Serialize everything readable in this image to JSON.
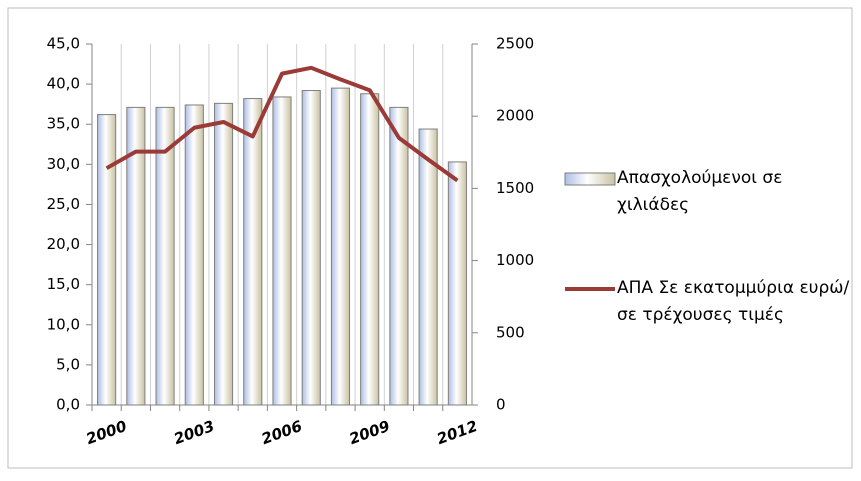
{
  "chart_data": {
    "type": "bar",
    "categories": [
      "2000",
      null,
      null,
      "2003",
      null,
      null,
      "2006",
      null,
      null,
      "2009",
      null,
      null,
      "2012"
    ],
    "series": [
      {
        "name": "Απασχολούμενοι σε χιλιάδες",
        "type": "bar",
        "color": "#c9c2a2",
        "values": [
          36.2,
          37.1,
          37.1,
          37.4,
          37.6,
          38.2,
          38.4,
          39.2,
          39.5,
          38.8,
          37.1,
          34.4,
          30.3
        ]
      },
      {
        "name": "ΑΠΑ Σε εκατομμύρια ευρώ/ σε τρέχουσες τιμές",
        "type": "line",
        "axis": "y2",
        "color": "#9b3b38",
        "values": [
          1640,
          1755,
          1755,
          1920,
          1960,
          1860,
          2295,
          2335,
          2255,
          2180,
          1850,
          1700,
          1555
        ]
      }
    ],
    "ylim": [
      0,
      45
    ],
    "yticks": [
      {
        "value": 0,
        "label": "0,0"
      },
      {
        "value": 5,
        "label": "5,0"
      },
      {
        "value": 10,
        "label": "10,0"
      },
      {
        "value": 15,
        "label": "15,0"
      },
      {
        "value": 20,
        "label": "20,0"
      },
      {
        "value": 25,
        "label": "25,0"
      },
      {
        "value": 30,
        "label": "30,0"
      },
      {
        "value": 35,
        "label": "35,0"
      },
      {
        "value": 40,
        "label": "40,0"
      },
      {
        "value": 45,
        "label": "45,0"
      }
    ],
    "y2lim": [
      0,
      2500
    ],
    "y2ticks": [
      0,
      500,
      1000,
      1500,
      2000,
      2500
    ],
    "xgrid": true,
    "legend": "right"
  }
}
